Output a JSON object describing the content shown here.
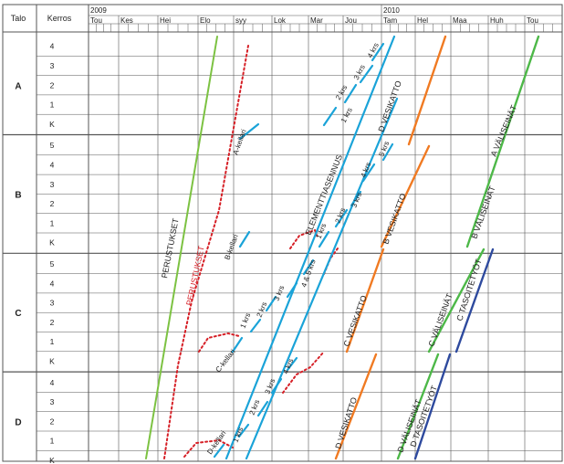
{
  "header": {
    "talo": "Talo",
    "kerros": "Kerros"
  },
  "years": [
    {
      "label": "2009",
      "start_month": 0
    },
    {
      "label": "2010",
      "start_month": 8
    }
  ],
  "months": [
    "Tou",
    "Kes",
    "Hei",
    "Elo",
    "syy",
    "Lok",
    "Mar",
    "Jou",
    "Tam",
    "Hel",
    "Maa",
    "Huh",
    "Tou"
  ],
  "houses": [
    {
      "name": "A",
      "floors": [
        "4",
        "3",
        "2",
        "1",
        "K"
      ]
    },
    {
      "name": "B",
      "floors": [
        "5",
        "4",
        "3",
        "2",
        "1",
        "K"
      ]
    },
    {
      "name": "C",
      "floors": [
        "5",
        "4",
        "3",
        "2",
        "1",
        "K"
      ]
    },
    {
      "name": "D",
      "floors": [
        "4",
        "3",
        "2",
        "1",
        "K"
      ]
    }
  ],
  "colors": {
    "perustukset_plan": "#7cc242",
    "perustukset_actual": "#d62027",
    "elementti": "#1aa3d8",
    "vesikatto": "#f07a22",
    "valiseinat": "#4db848",
    "tasoitetyot": "#2e4a9e",
    "grid": "#555555"
  },
  "labels": {
    "perustukset_plan": "PERUSTUKSET",
    "perustukset_actual": "PERUSTUKSET",
    "elementti": "ELEMENTTIASENNUS",
    "a_kellari": "A-kellari",
    "b_kellari": "B-kellari",
    "c_kellari": "C-kellari",
    "d_kellari": "D-kellari",
    "a_1krs": "1 krs",
    "a_2krs": "2 krs",
    "a_3krs": "3 krs",
    "a_4krs": "4 krs",
    "b_1krs": "1 krs",
    "b_2krs": "2 krs",
    "b_3krs": "3 krs",
    "b_4krs": "4 krs",
    "b_5krs": "5 krs",
    "c_1krs": "1 krs",
    "c_2krs": "2 krs",
    "c_3krs": "3 krs",
    "c_45krs": "4 & 5 krs",
    "d_1krs": "1 krs",
    "d_2krs": "2 krs",
    "d_3krs": "3 krs",
    "d_4krs": "4 krs",
    "a_vesikatto": "D VESIKATTO",
    "b_vesikatto": "B VESIKATTO",
    "c_vesikatto": "C VESIKATTO",
    "d_vesikatto": "D VESIKATTO",
    "a_valiseinat": "A VÄLISEINÄT",
    "b_valiseinat": "B VÄLISEINÄT",
    "c_valiseinat": "C VÄLISEINÄT",
    "c_tasoitetyot": "C TASOITETYÖT",
    "d_valiseinat": "D VÄLISEINÄT",
    "d_tasoitetyot": "D TASOITETYÖT"
  }
}
